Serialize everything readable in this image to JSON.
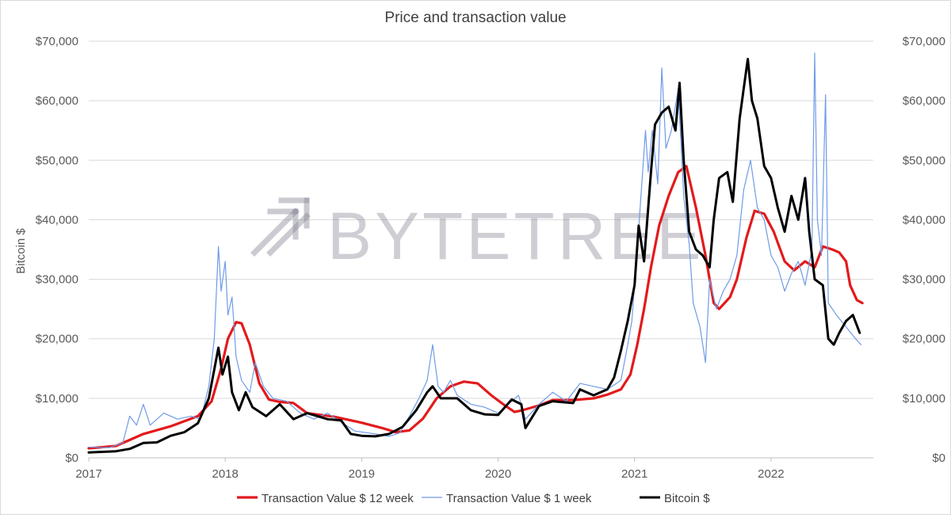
{
  "chart_data": {
    "type": "line",
    "title": "Price and transaction value",
    "ylabel": "Bitcoin $",
    "xlabel": "",
    "ylim": [
      0,
      70000
    ],
    "xlim": [
      2017.0,
      2022.75
    ],
    "grid": "horizontal",
    "legend_position": "bottom",
    "y_ticks": [
      "$0",
      "$10,000",
      "$20,000",
      "$30,000",
      "$40,000",
      "$50,000",
      "$60,000",
      "$70,000"
    ],
    "y_tick_values": [
      0,
      10000,
      20000,
      30000,
      40000,
      50000,
      60000,
      70000
    ],
    "x_ticks": [
      "2017",
      "2018",
      "2019",
      "2020",
      "2021",
      "2022"
    ],
    "x_tick_values": [
      2017,
      2018,
      2019,
      2020,
      2021,
      2022
    ],
    "watermark": "BYTETREE",
    "series": [
      {
        "name": "Transaction Value $ 12 week",
        "color": "#e31a1c",
        "points": [
          [
            2017.0,
            1600
          ],
          [
            2017.2,
            2000
          ],
          [
            2017.4,
            4000
          ],
          [
            2017.6,
            5300
          ],
          [
            2017.8,
            7000
          ],
          [
            2017.9,
            9500
          ],
          [
            2017.97,
            15000
          ],
          [
            2018.02,
            20000
          ],
          [
            2018.08,
            22800
          ],
          [
            2018.12,
            22600
          ],
          [
            2018.18,
            19000
          ],
          [
            2018.25,
            12500
          ],
          [
            2018.32,
            9800
          ],
          [
            2018.4,
            9400
          ],
          [
            2018.5,
            9200
          ],
          [
            2018.6,
            7500
          ],
          [
            2018.8,
            6900
          ],
          [
            2019.0,
            5900
          ],
          [
            2019.15,
            5000
          ],
          [
            2019.25,
            4300
          ],
          [
            2019.35,
            4600
          ],
          [
            2019.45,
            6600
          ],
          [
            2019.55,
            10000
          ],
          [
            2019.65,
            12000
          ],
          [
            2019.75,
            12800
          ],
          [
            2019.85,
            12500
          ],
          [
            2019.95,
            10500
          ],
          [
            2020.05,
            8800
          ],
          [
            2020.12,
            7700
          ],
          [
            2020.18,
            8000
          ],
          [
            2020.3,
            8800
          ],
          [
            2020.4,
            9700
          ],
          [
            2020.55,
            9700
          ],
          [
            2020.7,
            10000
          ],
          [
            2020.8,
            10600
          ],
          [
            2020.9,
            11500
          ],
          [
            2020.97,
            14000
          ],
          [
            2021.02,
            19000
          ],
          [
            2021.07,
            25000
          ],
          [
            2021.12,
            32000
          ],
          [
            2021.18,
            39000
          ],
          [
            2021.25,
            44000
          ],
          [
            2021.32,
            48000
          ],
          [
            2021.38,
            49000
          ],
          [
            2021.45,
            42000
          ],
          [
            2021.52,
            34000
          ],
          [
            2021.58,
            26000
          ],
          [
            2021.62,
            25000
          ],
          [
            2021.7,
            27000
          ],
          [
            2021.75,
            30000
          ],
          [
            2021.82,
            37000
          ],
          [
            2021.88,
            41500
          ],
          [
            2021.95,
            41000
          ],
          [
            2022.02,
            38000
          ],
          [
            2022.1,
            33000
          ],
          [
            2022.17,
            31500
          ],
          [
            2022.25,
            33000
          ],
          [
            2022.32,
            32000
          ],
          [
            2022.38,
            35500
          ],
          [
            2022.45,
            35000
          ],
          [
            2022.5,
            34500
          ],
          [
            2022.55,
            33000
          ],
          [
            2022.58,
            29000
          ],
          [
            2022.63,
            26500
          ],
          [
            2022.67,
            26000
          ]
        ]
      },
      {
        "name": "Transaction Value $ 1 week",
        "color": "#6f9be8",
        "points": [
          [
            2017.0,
            1800
          ],
          [
            2017.15,
            1700
          ],
          [
            2017.25,
            2500
          ],
          [
            2017.3,
            7000
          ],
          [
            2017.35,
            5500
          ],
          [
            2017.4,
            9000
          ],
          [
            2017.45,
            5500
          ],
          [
            2017.55,
            7500
          ],
          [
            2017.65,
            6500
          ],
          [
            2017.75,
            7000
          ],
          [
            2017.82,
            6500
          ],
          [
            2017.88,
            12000
          ],
          [
            2017.92,
            20000
          ],
          [
            2017.95,
            35500
          ],
          [
            2017.97,
            28000
          ],
          [
            2018.0,
            33000
          ],
          [
            2018.02,
            24000
          ],
          [
            2018.05,
            27000
          ],
          [
            2018.08,
            17000
          ],
          [
            2018.12,
            13000
          ],
          [
            2018.18,
            11000
          ],
          [
            2018.22,
            16000
          ],
          [
            2018.28,
            12000
          ],
          [
            2018.35,
            10000
          ],
          [
            2018.45,
            9500
          ],
          [
            2018.55,
            7500
          ],
          [
            2018.65,
            6500
          ],
          [
            2018.75,
            7500
          ],
          [
            2018.85,
            6000
          ],
          [
            2018.95,
            4500
          ],
          [
            2019.1,
            4000
          ],
          [
            2019.2,
            3600
          ],
          [
            2019.28,
            4200
          ],
          [
            2019.35,
            7000
          ],
          [
            2019.42,
            10000
          ],
          [
            2019.48,
            13000
          ],
          [
            2019.52,
            19000
          ],
          [
            2019.56,
            12000
          ],
          [
            2019.6,
            11000
          ],
          [
            2019.65,
            13000
          ],
          [
            2019.7,
            10500
          ],
          [
            2019.8,
            9000
          ],
          [
            2019.9,
            8500
          ],
          [
            2020.0,
            7500
          ],
          [
            2020.1,
            9500
          ],
          [
            2020.15,
            10500
          ],
          [
            2020.2,
            6500
          ],
          [
            2020.3,
            9000
          ],
          [
            2020.4,
            11000
          ],
          [
            2020.5,
            9500
          ],
          [
            2020.6,
            12500
          ],
          [
            2020.7,
            12000
          ],
          [
            2020.8,
            11500
          ],
          [
            2020.9,
            13000
          ],
          [
            2020.95,
            19000
          ],
          [
            2020.98,
            23000
          ],
          [
            2021.02,
            35000
          ],
          [
            2021.05,
            45000
          ],
          [
            2021.08,
            55000
          ],
          [
            2021.1,
            48000
          ],
          [
            2021.13,
            55000
          ],
          [
            2021.17,
            46000
          ],
          [
            2021.2,
            65500
          ],
          [
            2021.23,
            52000
          ],
          [
            2021.27,
            55000
          ],
          [
            2021.32,
            62000
          ],
          [
            2021.36,
            44000
          ],
          [
            2021.4,
            36000
          ],
          [
            2021.43,
            26000
          ],
          [
            2021.48,
            22000
          ],
          [
            2021.52,
            16000
          ],
          [
            2021.55,
            30000
          ],
          [
            2021.6,
            25000
          ],
          [
            2021.65,
            28000
          ],
          [
            2021.7,
            30000
          ],
          [
            2021.75,
            34000
          ],
          [
            2021.8,
            45000
          ],
          [
            2021.85,
            50000
          ],
          [
            2021.9,
            42000
          ],
          [
            2021.95,
            40000
          ],
          [
            2022.0,
            34000
          ],
          [
            2022.05,
            32000
          ],
          [
            2022.1,
            28000
          ],
          [
            2022.15,
            31000
          ],
          [
            2022.2,
            33000
          ],
          [
            2022.25,
            29000
          ],
          [
            2022.3,
            35000
          ],
          [
            2022.32,
            68000
          ],
          [
            2022.34,
            40000
          ],
          [
            2022.37,
            34000
          ],
          [
            2022.4,
            61000
          ],
          [
            2022.42,
            26000
          ],
          [
            2022.48,
            24000
          ],
          [
            2022.55,
            22000
          ],
          [
            2022.62,
            20000
          ],
          [
            2022.66,
            19000
          ]
        ]
      },
      {
        "name": "Bitcoin $",
        "color": "#000000",
        "points": [
          [
            2017.0,
            900
          ],
          [
            2017.1,
            1000
          ],
          [
            2017.2,
            1100
          ],
          [
            2017.3,
            1500
          ],
          [
            2017.4,
            2500
          ],
          [
            2017.5,
            2600
          ],
          [
            2017.6,
            3700
          ],
          [
            2017.7,
            4300
          ],
          [
            2017.8,
            5800
          ],
          [
            2017.88,
            10000
          ],
          [
            2017.95,
            18500
          ],
          [
            2017.98,
            14000
          ],
          [
            2018.02,
            17000
          ],
          [
            2018.05,
            11000
          ],
          [
            2018.1,
            8000
          ],
          [
            2018.15,
            11000
          ],
          [
            2018.2,
            8500
          ],
          [
            2018.3,
            7000
          ],
          [
            2018.4,
            9000
          ],
          [
            2018.5,
            6500
          ],
          [
            2018.6,
            7500
          ],
          [
            2018.75,
            6500
          ],
          [
            2018.85,
            6300
          ],
          [
            2018.92,
            4000
          ],
          [
            2019.0,
            3700
          ],
          [
            2019.1,
            3600
          ],
          [
            2019.2,
            4000
          ],
          [
            2019.3,
            5200
          ],
          [
            2019.4,
            8000
          ],
          [
            2019.48,
            11000
          ],
          [
            2019.52,
            12000
          ],
          [
            2019.58,
            10000
          ],
          [
            2019.7,
            10000
          ],
          [
            2019.8,
            8000
          ],
          [
            2019.9,
            7300
          ],
          [
            2020.0,
            7200
          ],
          [
            2020.1,
            9800
          ],
          [
            2020.17,
            9000
          ],
          [
            2020.2,
            5000
          ],
          [
            2020.3,
            8700
          ],
          [
            2020.4,
            9500
          ],
          [
            2020.55,
            9200
          ],
          [
            2020.6,
            11500
          ],
          [
            2020.7,
            10500
          ],
          [
            2020.8,
            11500
          ],
          [
            2020.85,
            13500
          ],
          [
            2020.9,
            18000
          ],
          [
            2020.95,
            23000
          ],
          [
            2021.0,
            29000
          ],
          [
            2021.03,
            39000
          ],
          [
            2021.07,
            33000
          ],
          [
            2021.12,
            48000
          ],
          [
            2021.15,
            56000
          ],
          [
            2021.2,
            58000
          ],
          [
            2021.25,
            59000
          ],
          [
            2021.3,
            55000
          ],
          [
            2021.33,
            63000
          ],
          [
            2021.36,
            50000
          ],
          [
            2021.4,
            38000
          ],
          [
            2021.45,
            35000
          ],
          [
            2021.5,
            34000
          ],
          [
            2021.55,
            32000
          ],
          [
            2021.58,
            40000
          ],
          [
            2021.62,
            47000
          ],
          [
            2021.68,
            48000
          ],
          [
            2021.72,
            43000
          ],
          [
            2021.77,
            57000
          ],
          [
            2021.8,
            62000
          ],
          [
            2021.83,
            67000
          ],
          [
            2021.86,
            60000
          ],
          [
            2021.9,
            57000
          ],
          [
            2021.95,
            49000
          ],
          [
            2022.0,
            47000
          ],
          [
            2022.05,
            42000
          ],
          [
            2022.1,
            38000
          ],
          [
            2022.15,
            44000
          ],
          [
            2022.2,
            40000
          ],
          [
            2022.25,
            47000
          ],
          [
            2022.28,
            38000
          ],
          [
            2022.32,
            30000
          ],
          [
            2022.38,
            29000
          ],
          [
            2022.42,
            20000
          ],
          [
            2022.46,
            19000
          ],
          [
            2022.5,
            21000
          ],
          [
            2022.55,
            23000
          ],
          [
            2022.6,
            24000
          ],
          [
            2022.65,
            21000
          ]
        ]
      }
    ]
  }
}
